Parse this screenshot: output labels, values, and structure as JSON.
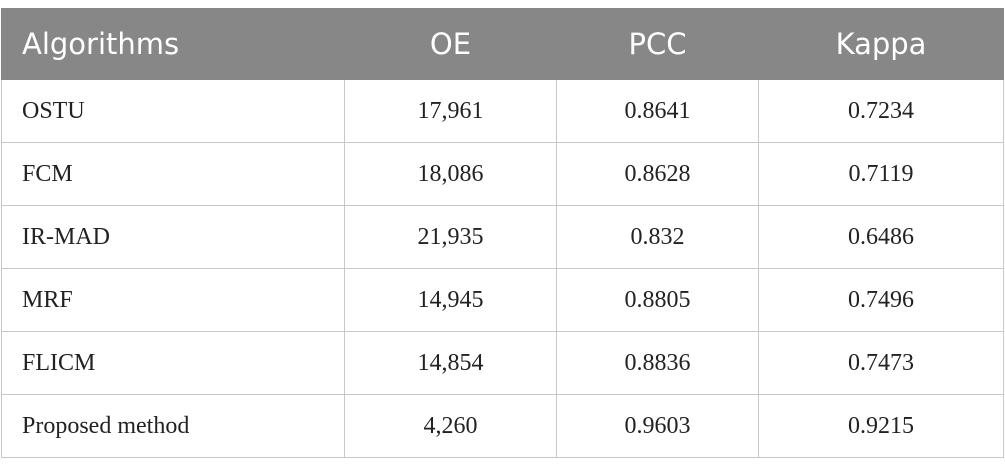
{
  "table": {
    "headers": [
      "Algorithms",
      "OE",
      "PCC",
      "Kappa"
    ],
    "rows": [
      [
        "OSTU",
        "17,961",
        "0.8641",
        "0.7234"
      ],
      [
        "FCM",
        "18,086",
        "0.8628",
        "0.7119"
      ],
      [
        "IR-MAD",
        "21,935",
        "0.832",
        "0.6486"
      ],
      [
        "MRF",
        "14,945",
        "0.8805",
        "0.7496"
      ],
      [
        "FLICM",
        "14,854",
        "0.8836",
        "0.7473"
      ],
      [
        "Proposed method",
        "4,260",
        "0.9603",
        "0.9215"
      ]
    ]
  }
}
